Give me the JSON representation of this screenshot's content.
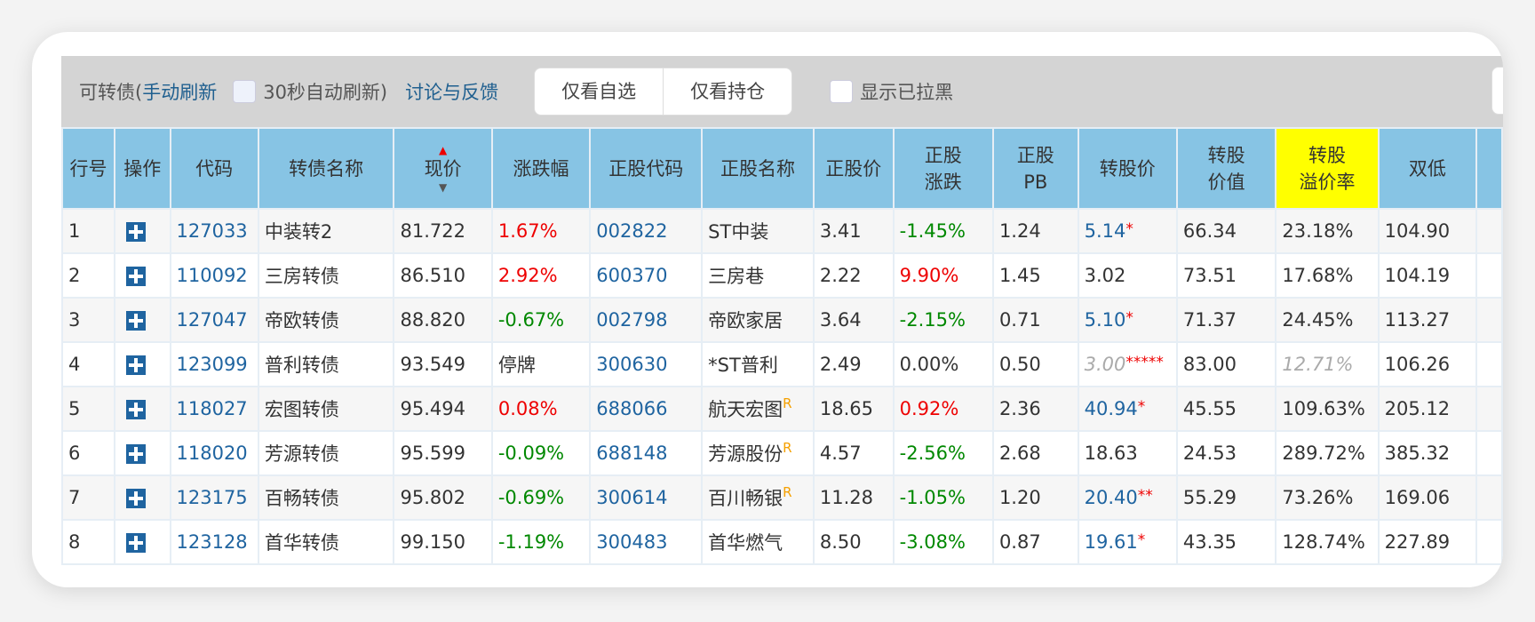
{
  "toolbar": {
    "title": "可转债(",
    "manual": "手动刷新",
    "auto": "30秒自动刷新)",
    "feedback": "讨论与反馈",
    "only_watch": "仅看自选",
    "only_hold": "仅看持仓",
    "show_black": "显示已拉黑"
  },
  "columns": [
    "行号",
    "操作",
    "代码",
    "转债名称",
    "现价",
    "涨跌幅",
    "正股代码",
    "正股名称",
    "正股价",
    "正股涨跌",
    "正股PB",
    "转股价",
    "转股价值",
    "转股溢价率",
    "双低"
  ],
  "header_lines": {
    "c9a": "正股",
    "c9b": "涨跌",
    "c10a": "正股",
    "c10b": "PB",
    "c12a": "转股",
    "c12b": "价值",
    "c13a": "转股",
    "c13b": "溢价率"
  },
  "sort": {
    "column": "现价",
    "direction": "ascending"
  },
  "rows": [
    {
      "no": "1",
      "code": "127033",
      "name": "中装转2",
      "price": "81.722",
      "chg": "1.67%",
      "chgc": "red",
      "scode": "002822",
      "sname": "ST中装",
      "sr": "",
      "sprice": "3.41",
      "schg": "-1.45%",
      "schgc": "green",
      "pb": "1.24",
      "cprice": "5.14",
      "cstar": "*",
      "cpc": "blue",
      "cval": "66.34",
      "prem": "23.18%",
      "premc": "",
      "dlow": "104.90"
    },
    {
      "no": "2",
      "code": "110092",
      "name": "三房转债",
      "price": "86.510",
      "chg": "2.92%",
      "chgc": "red",
      "scode": "600370",
      "sname": "三房巷",
      "sr": "",
      "sprice": "2.22",
      "schg": "9.90%",
      "schgc": "red",
      "pb": "1.45",
      "cprice": "3.02",
      "cstar": "",
      "cpc": "",
      "cval": "73.51",
      "prem": "17.68%",
      "premc": "",
      "dlow": "104.19"
    },
    {
      "no": "3",
      "code": "127047",
      "name": "帝欧转债",
      "price": "88.820",
      "chg": "-0.67%",
      "chgc": "green",
      "scode": "002798",
      "sname": "帝欧家居",
      "sr": "",
      "sprice": "3.64",
      "schg": "-2.15%",
      "schgc": "green",
      "pb": "0.71",
      "cprice": "5.10",
      "cstar": "*",
      "cpc": "blue",
      "cval": "71.37",
      "prem": "24.45%",
      "premc": "",
      "dlow": "113.27"
    },
    {
      "no": "4",
      "code": "123099",
      "name": "普利转债",
      "price": "93.549",
      "chg": "停牌",
      "chgc": "",
      "scode": "300630",
      "sname": "*ST普利",
      "sr": "",
      "sprice": "2.49",
      "schg": "0.00%",
      "schgc": "",
      "pb": "0.50",
      "cprice": "3.00",
      "cstar": "*****",
      "cpc": "gray",
      "cval": "83.00",
      "prem": "12.71%",
      "premc": "gray",
      "dlow": "106.26"
    },
    {
      "no": "5",
      "code": "118027",
      "name": "宏图转债",
      "price": "95.494",
      "chg": "0.08%",
      "chgc": "red",
      "scode": "688066",
      "sname": "航天宏图",
      "sr": "R",
      "sprice": "18.65",
      "schg": "0.92%",
      "schgc": "red",
      "pb": "2.36",
      "cprice": "40.94",
      "cstar": "*",
      "cpc": "blue",
      "cval": "45.55",
      "prem": "109.63%",
      "premc": "",
      "dlow": "205.12"
    },
    {
      "no": "6",
      "code": "118020",
      "name": "芳源转债",
      "price": "95.599",
      "chg": "-0.09%",
      "chgc": "green",
      "scode": "688148",
      "sname": "芳源股份",
      "sr": "R",
      "sprice": "4.57",
      "schg": "-2.56%",
      "schgc": "green",
      "pb": "2.68",
      "cprice": "18.63",
      "cstar": "",
      "cpc": "",
      "cval": "24.53",
      "prem": "289.72%",
      "premc": "",
      "dlow": "385.32"
    },
    {
      "no": "7",
      "code": "123175",
      "name": "百畅转债",
      "price": "95.802",
      "chg": "-0.69%",
      "chgc": "green",
      "scode": "300614",
      "sname": "百川畅银",
      "sr": "R",
      "sprice": "11.28",
      "schg": "-1.05%",
      "schgc": "green",
      "pb": "1.20",
      "cprice": "20.40",
      "cstar": "**",
      "cpc": "blue",
      "cval": "55.29",
      "prem": "73.26%",
      "premc": "",
      "dlow": "169.06"
    },
    {
      "no": "8",
      "code": "123128",
      "name": "首华转债",
      "price": "99.150",
      "chg": "-1.19%",
      "chgc": "green",
      "scode": "300483",
      "sname": "首华燃气",
      "sr": "",
      "sprice": "8.50",
      "schg": "-3.08%",
      "schgc": "green",
      "pb": "0.87",
      "cprice": "19.61",
      "cstar": "*",
      "cpc": "blue",
      "cval": "43.35",
      "prem": "128.74%",
      "premc": "",
      "dlow": "227.89"
    }
  ]
}
